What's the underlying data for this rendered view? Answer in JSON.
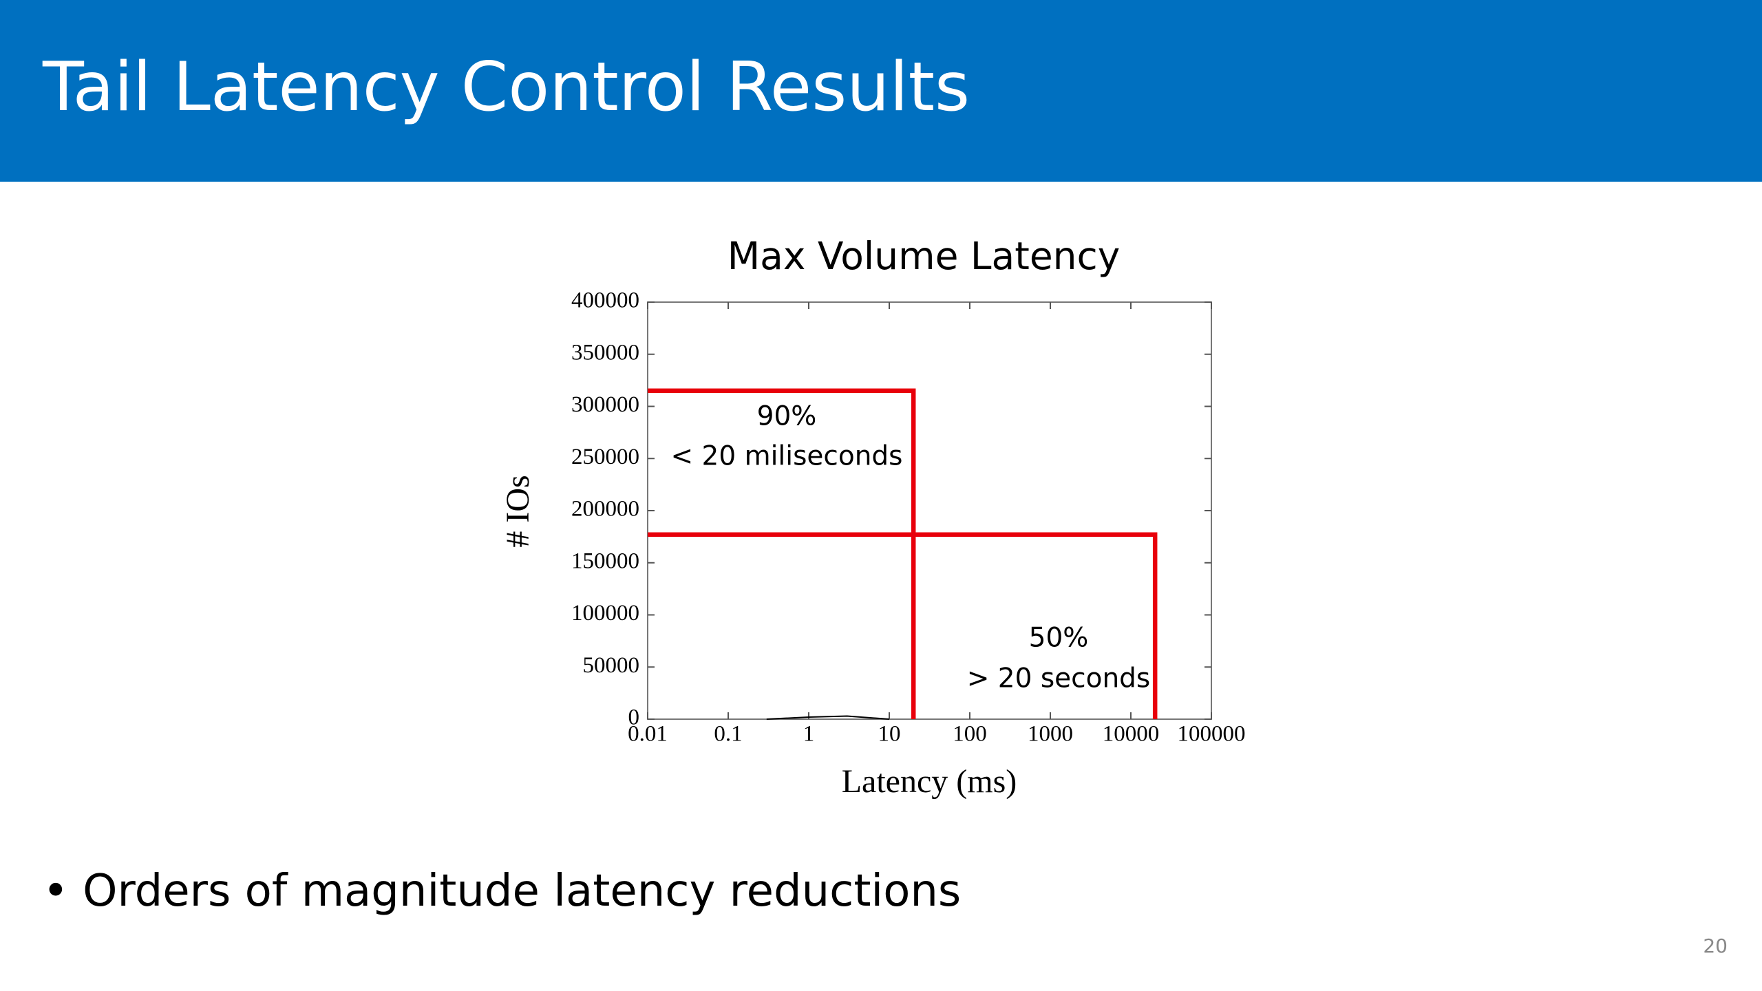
{
  "header": {
    "title": "Tail Latency Control Results"
  },
  "chart_data": {
    "type": "line",
    "title": "Max Volume Latency",
    "x_label": "Latency (ms)",
    "y_label": "# IOs",
    "log_x": true,
    "xlim": [
      0.01,
      100000
    ],
    "xticks": [
      0.01,
      0.1,
      1,
      10,
      100,
      1000,
      10000,
      100000
    ],
    "ylim": [
      0,
      400000
    ],
    "yticks": [
      0,
      50000,
      100000,
      150000,
      200000,
      250000,
      300000,
      350000,
      400000
    ],
    "series": [
      {
        "color": "#000000",
        "x": [
          0.3,
          1,
          3,
          10
        ],
        "values": [
          0,
          2000,
          3000,
          0
        ]
      },
      {
        "color": "#e8000b",
        "x": [
          0.01,
          20,
          20
        ],
        "values": [
          315000,
          315000,
          0
        ]
      },
      {
        "color": "#e8000b",
        "x": [
          0.01,
          20000,
          20000
        ],
        "values": [
          177000,
          177000,
          0
        ]
      }
    ],
    "annotations": [
      "90%",
      "< 20 miliseconds",
      "50%",
      "> 20 seconds"
    ]
  },
  "bullets": [
    "Orders of magnitude latency reductions"
  ],
  "page_number": "20"
}
